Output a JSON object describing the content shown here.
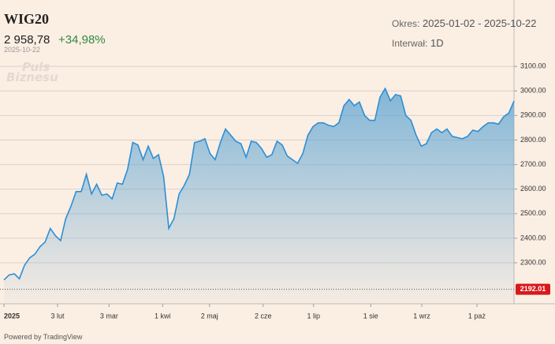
{
  "header": {
    "title": "WIG20",
    "price": "2 958,78",
    "change": "+34,98%",
    "date": "2025-10-22",
    "period_label": "Okres:",
    "period": "2025-01-02 - 2025-10-22",
    "interval_label": "Interwał:",
    "interval": "1D",
    "watermark": [
      "Puls",
      "Biznesu"
    ],
    "footer": "Powered by TradingView"
  },
  "chart_data": {
    "type": "area",
    "color": "#2b8fd6",
    "values": [
      2230,
      2250,
      2255,
      2235,
      2290,
      2320,
      2335,
      2365,
      2385,
      2440,
      2410,
      2390,
      2480,
      2530,
      2590,
      2590,
      2660,
      2580,
      2620,
      2575,
      2580,
      2560,
      2625,
      2620,
      2680,
      2790,
      2780,
      2720,
      2775,
      2725,
      2740,
      2650,
      2440,
      2480,
      2580,
      2615,
      2660,
      2790,
      2795,
      2805,
      2745,
      2720,
      2790,
      2845,
      2820,
      2795,
      2785,
      2730,
      2795,
      2790,
      2765,
      2730,
      2740,
      2795,
      2780,
      2735,
      2720,
      2705,
      2745,
      2820,
      2855,
      2870,
      2870,
      2860,
      2855,
      2870,
      2940,
      2965,
      2940,
      2955,
      2900,
      2880,
      2880,
      2975,
      3010,
      2960,
      2985,
      2980,
      2900,
      2880,
      2820,
      2775,
      2785,
      2830,
      2845,
      2830,
      2845,
      2815,
      2810,
      2805,
      2815,
      2840,
      2835,
      2855,
      2870,
      2870,
      2865,
      2895,
      2910,
      2958.78
    ],
    "xlim": [
      0,
      99
    ],
    "xticks": [
      {
        "value": 0,
        "label": "2025"
      },
      {
        "value": 10.4,
        "label": "3 lut"
      },
      {
        "value": 20.4,
        "label": "3 mar"
      },
      {
        "value": 30.8,
        "label": "1 kwi"
      },
      {
        "value": 39.9,
        "label": "2 maj"
      },
      {
        "value": 50.3,
        "label": "2 cze"
      },
      {
        "value": 60.1,
        "label": "1 lip"
      },
      {
        "value": 71.2,
        "label": "1 sie"
      },
      {
        "value": 81.1,
        "label": "1 wrz"
      },
      {
        "value": 91.8,
        "label": "1 paż"
      }
    ],
    "ylim": [
      2133,
      3139
    ],
    "yticks": [
      {
        "value": 2300,
        "label": "2300.00"
      },
      {
        "value": 2400,
        "label": "2400.00"
      },
      {
        "value": 2500,
        "label": "2500.00"
      },
      {
        "value": 2600,
        "label": "2600.00"
      },
      {
        "value": 2700,
        "label": "2700.00"
      },
      {
        "value": 2800,
        "label": "2800.00"
      },
      {
        "value": 2900,
        "label": "2900.00"
      },
      {
        "value": 3000,
        "label": "3000.00"
      },
      {
        "value": 3100,
        "label": "3100.00"
      }
    ],
    "baseline": 2192.01,
    "baseline_color": "#d7191c",
    "grid": true
  }
}
